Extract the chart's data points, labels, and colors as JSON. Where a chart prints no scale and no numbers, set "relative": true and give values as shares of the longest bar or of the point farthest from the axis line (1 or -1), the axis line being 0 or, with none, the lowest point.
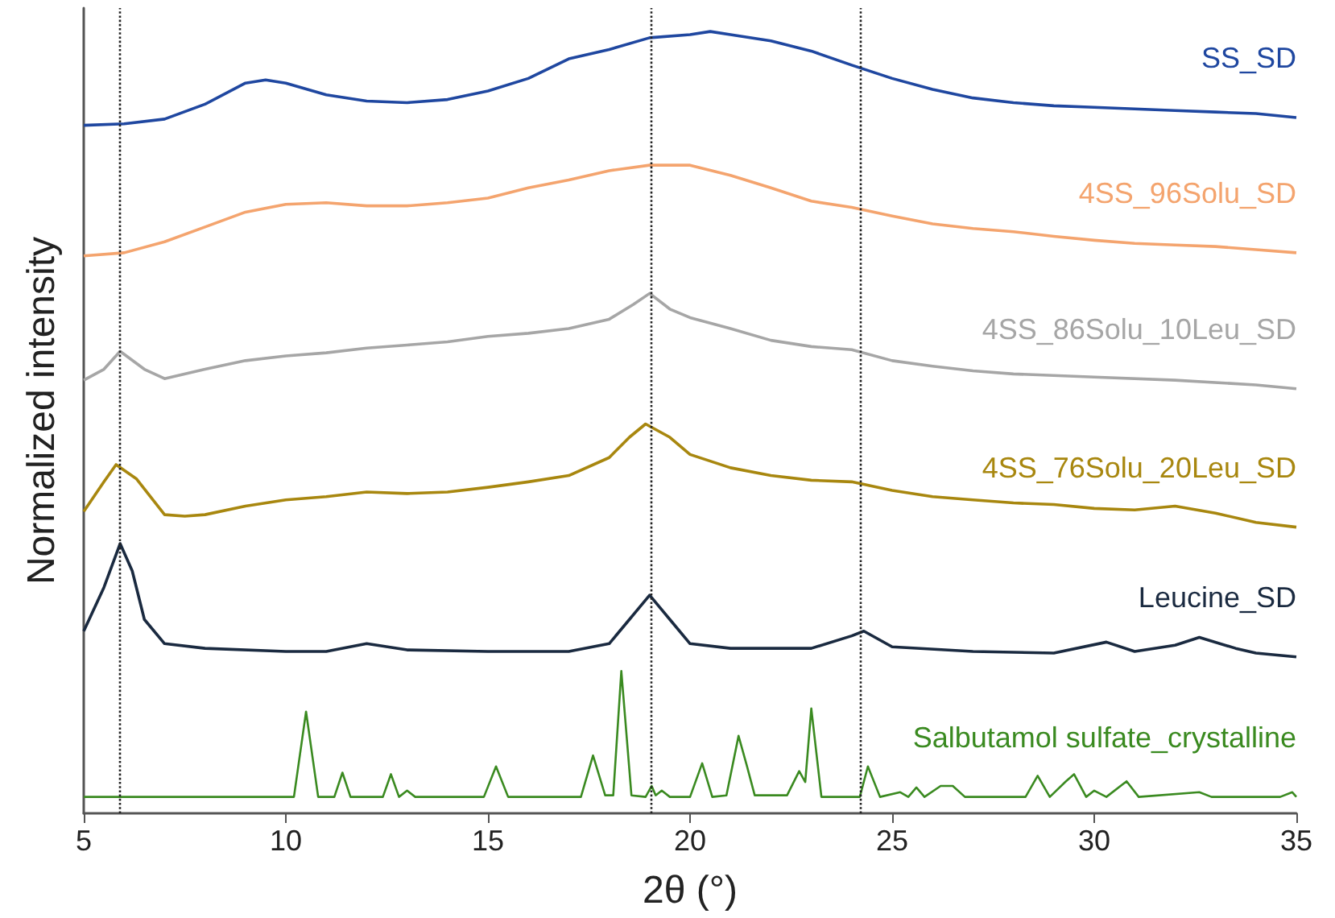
{
  "chart_data": {
    "type": "line",
    "relative": true,
    "xlabel": "2θ (°)",
    "ylabel": "Normalized intensity",
    "xlim": [
      5,
      35
    ],
    "xticks": [
      5,
      10,
      15,
      20,
      25,
      30,
      35
    ],
    "grid": false,
    "legend": false,
    "marker": "none",
    "line_style": "solid",
    "ref_lines": [
      {
        "axis": "x",
        "value": 5.9,
        "label": null,
        "color": "#222222",
        "line_style": "dotted"
      },
      {
        "axis": "x",
        "value": 19.05,
        "label": null,
        "color": "#222222",
        "line_style": "dotted"
      },
      {
        "axis": "x",
        "value": 24.2,
        "label": null,
        "color": "#222222",
        "line_style": "dotted"
      }
    ],
    "series": [
      {
        "name": "SS_SD",
        "color": "#1f47a0",
        "x": [
          5,
          6,
          7,
          8,
          9,
          9.5,
          10,
          11,
          12,
          13,
          14,
          15,
          16,
          17,
          18,
          19,
          20,
          20.5,
          21,
          22,
          23,
          24,
          25,
          26,
          27,
          28,
          29,
          30,
          31,
          32,
          33,
          34,
          35
        ],
        "values": [
          0.88,
          0.882,
          0.888,
          0.907,
          0.934,
          0.938,
          0.934,
          0.919,
          0.911,
          0.909,
          0.913,
          0.924,
          0.94,
          0.965,
          0.977,
          0.992,
          0.996,
          1.0,
          0.996,
          0.988,
          0.975,
          0.957,
          0.94,
          0.926,
          0.915,
          0.909,
          0.905,
          0.903,
          0.901,
          0.899,
          0.897,
          0.895,
          0.89
        ]
      },
      {
        "name": "4SS_96Solu_SD",
        "color": "#f4a46e",
        "x": [
          5,
          6,
          7,
          8,
          9,
          10,
          11,
          12,
          13,
          14,
          15,
          16,
          17,
          18,
          19,
          20,
          21,
          22,
          23,
          24,
          25,
          26,
          27,
          28,
          29,
          30,
          31,
          32,
          33,
          34,
          35
        ],
        "values": [
          0.713,
          0.717,
          0.731,
          0.75,
          0.769,
          0.779,
          0.781,
          0.777,
          0.777,
          0.781,
          0.787,
          0.8,
          0.81,
          0.822,
          0.829,
          0.829,
          0.816,
          0.8,
          0.783,
          0.775,
          0.764,
          0.754,
          0.748,
          0.744,
          0.738,
          0.733,
          0.729,
          0.727,
          0.725,
          0.721,
          0.717
        ]
      },
      {
        "name": "4SS_86Solu_10Leu_SD",
        "color": "#a6a6a6",
        "x": [
          5,
          5.5,
          5.9,
          6.5,
          7,
          8,
          9,
          10,
          11,
          12,
          13,
          14,
          15,
          16,
          17,
          18,
          18.6,
          19,
          19.5,
          20,
          21,
          22,
          23,
          24,
          25,
          26,
          27,
          28,
          30,
          32,
          34,
          35
        ],
        "values": [
          0.554,
          0.568,
          0.591,
          0.568,
          0.556,
          0.568,
          0.579,
          0.585,
          0.589,
          0.595,
          0.599,
          0.603,
          0.61,
          0.614,
          0.62,
          0.632,
          0.651,
          0.665,
          0.645,
          0.634,
          0.62,
          0.605,
          0.597,
          0.593,
          0.579,
          0.572,
          0.566,
          0.562,
          0.558,
          0.554,
          0.548,
          0.543
        ]
      },
      {
        "name": "4SS_76Solu_20Leu_SD",
        "color": "#a8870f",
        "x": [
          5,
          5.5,
          5.8,
          6.3,
          7,
          7.5,
          8,
          9,
          10,
          11,
          12,
          13,
          14,
          15,
          16,
          17,
          18,
          18.5,
          18.9,
          19.5,
          20,
          21,
          22,
          23,
          24,
          25,
          26,
          27,
          28,
          29,
          30,
          31,
          32,
          33,
          34,
          35
        ],
        "values": [
          0.386,
          0.424,
          0.446,
          0.428,
          0.382,
          0.38,
          0.382,
          0.393,
          0.401,
          0.405,
          0.411,
          0.409,
          0.411,
          0.417,
          0.424,
          0.432,
          0.455,
          0.481,
          0.498,
          0.481,
          0.459,
          0.442,
          0.432,
          0.426,
          0.424,
          0.413,
          0.405,
          0.401,
          0.397,
          0.395,
          0.39,
          0.388,
          0.393,
          0.384,
          0.372,
          0.366
        ]
      },
      {
        "name": "Leucine_SD",
        "color": "#1a2a40",
        "x": [
          5,
          5.5,
          5.9,
          6.2,
          6.5,
          7,
          8,
          10,
          11,
          12,
          13,
          15,
          17,
          18,
          18.5,
          19,
          19.5,
          20,
          21,
          23,
          24,
          24.3,
          25,
          27,
          29,
          30.3,
          31,
          32,
          32.6,
          33.5,
          34,
          35
        ],
        "values": [
          0.233,
          0.289,
          0.345,
          0.31,
          0.248,
          0.217,
          0.211,
          0.207,
          0.207,
          0.217,
          0.209,
          0.207,
          0.207,
          0.217,
          0.248,
          0.279,
          0.248,
          0.217,
          0.211,
          0.211,
          0.227,
          0.233,
          0.213,
          0.207,
          0.205,
          0.219,
          0.207,
          0.215,
          0.225,
          0.211,
          0.205,
          0.2
        ]
      },
      {
        "name": "Salbutamol sulfate_crystalline",
        "color": "#3a8a20",
        "x": [
          5,
          10.2,
          10.5,
          10.8,
          11.2,
          11.4,
          11.6,
          12.4,
          12.6,
          12.8,
          13.0,
          13.2,
          14.9,
          15.2,
          15.5,
          17.3,
          17.6,
          17.9,
          18.1,
          18.3,
          18.55,
          18.9,
          19.05,
          19.15,
          19.3,
          19.5,
          20.0,
          20.3,
          20.55,
          20.9,
          21.2,
          21.4,
          21.6,
          22.4,
          22.7,
          22.85,
          23.0,
          23.25,
          24.2,
          24.4,
          24.7,
          25.2,
          25.4,
          25.6,
          25.8,
          26.2,
          26.5,
          26.8,
          28.3,
          28.6,
          28.9,
          29.3,
          29.5,
          29.8,
          30.0,
          30.3,
          30.8,
          31.1,
          32.6,
          32.9,
          34.6,
          34.9,
          35
        ],
        "values": [
          0.021,
          0.021,
          0.13,
          0.021,
          0.021,
          0.052,
          0.021,
          0.021,
          0.05,
          0.021,
          0.029,
          0.021,
          0.021,
          0.06,
          0.021,
          0.021,
          0.074,
          0.023,
          0.023,
          0.182,
          0.023,
          0.021,
          0.035,
          0.023,
          0.029,
          0.021,
          0.021,
          0.064,
          0.021,
          0.023,
          0.099,
          0.062,
          0.023,
          0.023,
          0.054,
          0.04,
          0.134,
          0.021,
          0.021,
          0.06,
          0.021,
          0.027,
          0.021,
          0.033,
          0.021,
          0.035,
          0.035,
          0.021,
          0.021,
          0.048,
          0.021,
          0.041,
          0.05,
          0.021,
          0.029,
          0.021,
          0.041,
          0.021,
          0.027,
          0.021,
          0.021,
          0.027,
          0.021
        ]
      }
    ]
  }
}
